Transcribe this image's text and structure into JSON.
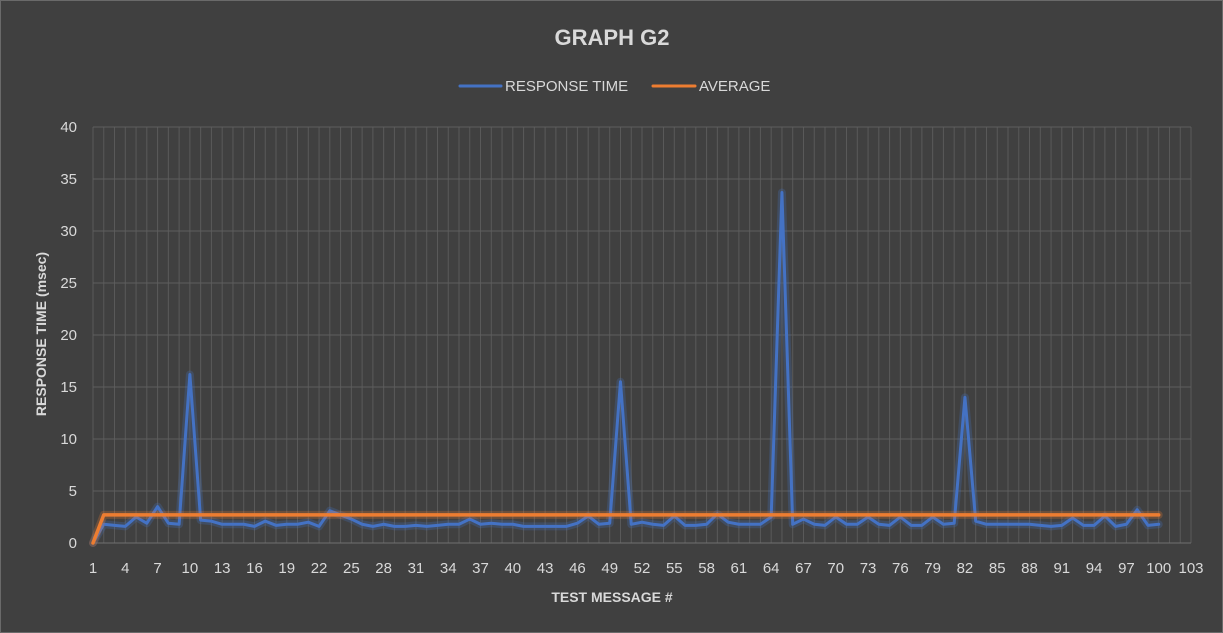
{
  "chart_data": {
    "type": "line",
    "title": "GRAPH G2",
    "xlabel": "TEST MESSAGE #",
    "ylabel": "RESPONSE TIME (msec)",
    "ylim": [
      0,
      40
    ],
    "yticks": [
      0,
      5,
      10,
      15,
      20,
      25,
      30,
      35,
      40
    ],
    "xlim": [
      1,
      103
    ],
    "xticks": [
      1,
      4,
      7,
      10,
      13,
      16,
      19,
      22,
      25,
      28,
      31,
      34,
      37,
      40,
      43,
      46,
      49,
      52,
      55,
      58,
      61,
      64,
      67,
      70,
      73,
      76,
      79,
      82,
      85,
      88,
      91,
      94,
      97,
      100,
      103
    ],
    "grid": true,
    "legend": "top",
    "x_start": 1,
    "series": [
      {
        "name": "RESPONSE TIME",
        "color": "#4472c4",
        "values": [
          0,
          1.8,
          1.7,
          1.6,
          2.5,
          1.9,
          3.5,
          1.9,
          1.8,
          16.2,
          2.2,
          2.1,
          1.8,
          1.8,
          1.8,
          1.6,
          2.1,
          1.7,
          1.8,
          1.8,
          2.0,
          1.6,
          3.1,
          2.7,
          2.3,
          1.8,
          1.6,
          1.8,
          1.6,
          1.6,
          1.7,
          1.6,
          1.7,
          1.8,
          1.8,
          2.3,
          1.8,
          1.9,
          1.8,
          1.8,
          1.6,
          1.6,
          1.6,
          1.6,
          1.6,
          1.9,
          2.6,
          1.8,
          1.9,
          15.5,
          1.8,
          2.0,
          1.8,
          1.7,
          2.6,
          1.7,
          1.7,
          1.8,
          2.8,
          2.0,
          1.8,
          1.8,
          1.8,
          2.5,
          33.7,
          1.8,
          2.3,
          1.8,
          1.7,
          2.5,
          1.8,
          1.8,
          2.5,
          1.8,
          1.7,
          2.5,
          1.7,
          1.7,
          2.5,
          1.8,
          1.9,
          14.0,
          2.1,
          1.8,
          1.8,
          1.8,
          1.8,
          1.8,
          1.7,
          1.6,
          1.7,
          2.4,
          1.7,
          1.7,
          2.6,
          1.6,
          1.8,
          3.2,
          1.7,
          1.8
        ]
      },
      {
        "name": "AVERAGE",
        "color": "#ed7d31",
        "values": [
          0,
          2.7,
          2.7,
          2.7,
          2.7,
          2.7,
          2.7,
          2.7,
          2.7,
          2.7,
          2.7,
          2.7,
          2.7,
          2.7,
          2.7,
          2.7,
          2.7,
          2.7,
          2.7,
          2.7,
          2.7,
          2.7,
          2.7,
          2.7,
          2.7,
          2.7,
          2.7,
          2.7,
          2.7,
          2.7,
          2.7,
          2.7,
          2.7,
          2.7,
          2.7,
          2.7,
          2.7,
          2.7,
          2.7,
          2.7,
          2.7,
          2.7,
          2.7,
          2.7,
          2.7,
          2.7,
          2.7,
          2.7,
          2.7,
          2.7,
          2.7,
          2.7,
          2.7,
          2.7,
          2.7,
          2.7,
          2.7,
          2.7,
          2.7,
          2.7,
          2.7,
          2.7,
          2.7,
          2.7,
          2.7,
          2.7,
          2.7,
          2.7,
          2.7,
          2.7,
          2.7,
          2.7,
          2.7,
          2.7,
          2.7,
          2.7,
          2.7,
          2.7,
          2.7,
          2.7,
          2.7,
          2.7,
          2.7,
          2.7,
          2.7,
          2.7,
          2.7,
          2.7,
          2.7,
          2.7,
          2.7,
          2.7,
          2.7,
          2.7,
          2.7,
          2.7,
          2.7,
          2.7,
          2.7,
          2.7
        ]
      }
    ]
  }
}
